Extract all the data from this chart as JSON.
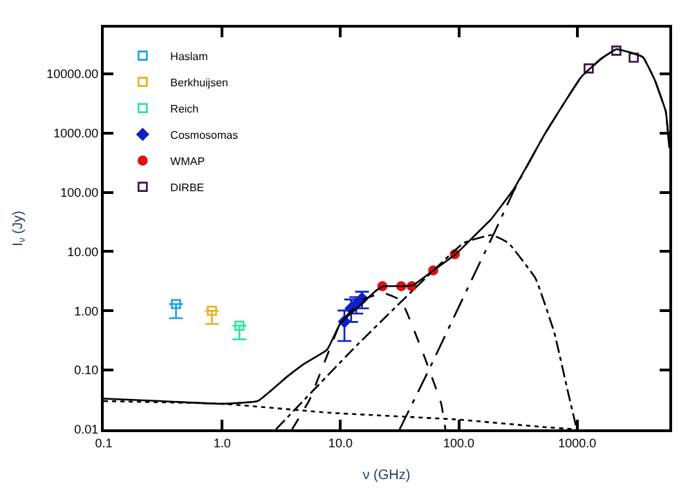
{
  "chart_data": {
    "type": "scatter",
    "xlabel": "ν (GHz)",
    "ylabel": "I$_{ν}$ (Jy)",
    "log": "xy",
    "legend": "top left",
    "xlim": [
      0.1,
      6000
    ],
    "ylim": [
      0.01,
      60000
    ],
    "xticks": [
      {
        "value": 0.1,
        "label": "0.1"
      },
      {
        "value": 1,
        "label": "1.0"
      },
      {
        "value": 10,
        "label": "10.0"
      },
      {
        "value": 100,
        "label": "100.0"
      },
      {
        "value": 1000,
        "label": "1000.0"
      }
    ],
    "yticks": [
      {
        "value": 0.01,
        "label": "0.01"
      },
      {
        "value": 0.1,
        "label": "0.10"
      },
      {
        "value": 1,
        "label": "1.00"
      },
      {
        "value": 10,
        "label": "10.00"
      },
      {
        "value": 100,
        "label": "100.00"
      },
      {
        "value": 1000,
        "label": "1000.00"
      },
      {
        "value": 10000,
        "label": "10000.00"
      }
    ],
    "series": [
      {
        "name": "Haslam",
        "marker": "square-open",
        "color": "#1ea0e6",
        "x": [
          0.408
        ],
        "values": [
          1.3
        ],
        "errors": [
          [
            0.75,
            1.3
          ]
        ]
      },
      {
        "name": "Berkhuijsen",
        "marker": "square-open",
        "color": "#e6b422",
        "x": [
          0.82
        ],
        "values": [
          1.0
        ],
        "errors": [
          [
            0.6,
            1.0
          ]
        ]
      },
      {
        "name": "Reich",
        "marker": "square-open",
        "color": "#2ee6a0",
        "x": [
          1.4
        ],
        "values": [
          0.56
        ],
        "errors": [
          [
            0.33,
            0.56
          ]
        ]
      },
      {
        "name": "Cosmosomas",
        "marker": "diamond",
        "color": "#1020c8",
        "x": [
          10.8,
          12.3,
          13.6,
          15.2
        ],
        "values": [
          0.66,
          1.1,
          1.3,
          1.6
        ],
        "errors": [
          0.35,
          0.45,
          0.4,
          0.5
        ]
      },
      {
        "name": "WMAP",
        "marker": "circle",
        "color": "#e01010",
        "x": [
          22.6,
          32.6,
          40,
          60.7,
          92.4
        ],
        "values": [
          2.6,
          2.6,
          2.6,
          4.8,
          9
        ]
      },
      {
        "name": "DIRBE",
        "marker": "square-open",
        "color": "#40104a",
        "x": [
          1250,
          2140,
          3000
        ],
        "values": [
          12300,
          24500,
          18700
        ]
      },
      {
        "type": "line",
        "line_style": "solid",
        "color": "#000000",
        "x": [
          0.1,
          0.3,
          1,
          2,
          3.5,
          5,
          7.7,
          10,
          15,
          20,
          23,
          33,
          41,
          61,
          94,
          130,
          187,
          294,
          530,
          1080,
          1600,
          2140,
          3000,
          3600,
          4500,
          5600,
          6000
        ],
        "values": [
          0.033,
          0.03,
          0.027,
          0.03,
          0.076,
          0.13,
          0.22,
          0.62,
          1.3,
          2.2,
          2.6,
          2.6,
          2.7,
          4.8,
          9,
          17,
          35,
          117,
          950,
          8800,
          18000,
          25900,
          22000,
          19000,
          8000,
          2300,
          560
        ]
      },
      {
        "type": "line",
        "line_style": "dotted",
        "color": "#000000",
        "x": [
          0.1,
          1,
          8.3,
          100,
          500,
          1000
        ],
        "values": [
          0.03,
          0.027,
          0.019,
          0.0146,
          0.011,
          0.01
        ]
      },
      {
        "type": "line",
        "line_style": "dashed",
        "color": "#000000",
        "x": [
          3.9,
          5.5,
          10,
          15,
          23,
          32.5,
          50,
          71,
          77
        ],
        "values": [
          0.01,
          0.032,
          0.62,
          1.5,
          2,
          1.5,
          0.19,
          0.027,
          0.01
        ]
      },
      {
        "type": "line",
        "line_style": "dashdot",
        "color": "#000000",
        "x": [
          2.85,
          13.7,
          110,
          190,
          262,
          445,
          640,
          830,
          980
        ],
        "values": [
          0.01,
          0.26,
          14,
          19,
          14,
          3.5,
          0.43,
          0.045,
          0.011
        ]
      },
      {
        "type": "line",
        "line_style": "longdashdot",
        "color": "#000000",
        "x": [
          31.6,
          57,
          100,
          150,
          200,
          294,
          530,
          1080,
          1600,
          2140,
          3000,
          3600,
          4500,
          5600,
          6000
        ],
        "values": [
          0.01,
          0.11,
          1.17,
          6.4,
          21,
          110,
          950,
          8800,
          18000,
          25900,
          22000,
          19000,
          8000,
          2300,
          560
        ]
      }
    ]
  }
}
